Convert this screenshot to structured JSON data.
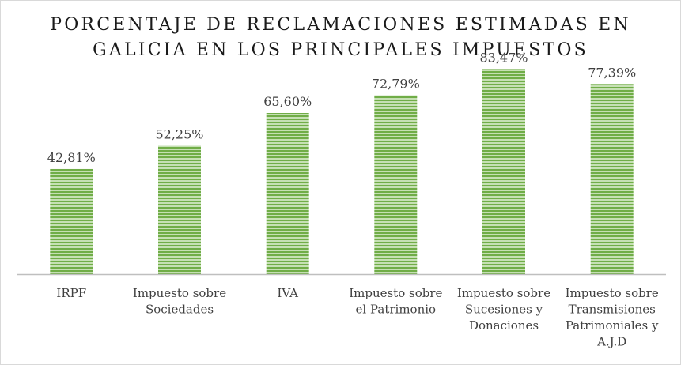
{
  "chart_data": {
    "type": "bar",
    "title": "PORCENTAJE DE RECLAMACIONES ESTIMADAS EN GALICIA EN LOS PRINCIPALES IMPUESTOS",
    "title_lines": [
      "PORCENTAJE DE RECLAMACIONES ESTIMADAS EN",
      "GALICIA EN LOS PRINCIPALES IMPUESTOS"
    ],
    "categories": [
      "IRPF",
      "Impuesto sobre Sociedades",
      "IVA",
      "Impuesto sobre el Patrimonio",
      "Impuesto sobre Sucesiones y Donaciones",
      "Impuesto sobre Transmisiones Patrimoniales y A.J.D"
    ],
    "category_label_lines": [
      [
        "IRPF"
      ],
      [
        "Impuesto sobre",
        "Sociedades"
      ],
      [
        "IVA"
      ],
      [
        "Impuesto sobre",
        "el Patrimonio"
      ],
      [
        "Impuesto sobre",
        "Sucesiones y",
        "Donaciones"
      ],
      [
        "Impuesto sobre",
        "Transmisiones",
        "Patrimoniales y",
        "A.J.D"
      ]
    ],
    "values": [
      42.81,
      52.25,
      65.6,
      72.79,
      83.47,
      77.39
    ],
    "data_labels": [
      "42,81%",
      "52,25%",
      "65,60%",
      "72,79%",
      "83,47%",
      "77,39%"
    ],
    "ylim": [
      0,
      100
    ],
    "grid": false,
    "legend": "none",
    "colors": {
      "bar_stripe_light": "#c6e0b4",
      "bar_stripe_dark": "#70ad47",
      "axis": "#bfbfbf",
      "text": "#404040"
    }
  }
}
